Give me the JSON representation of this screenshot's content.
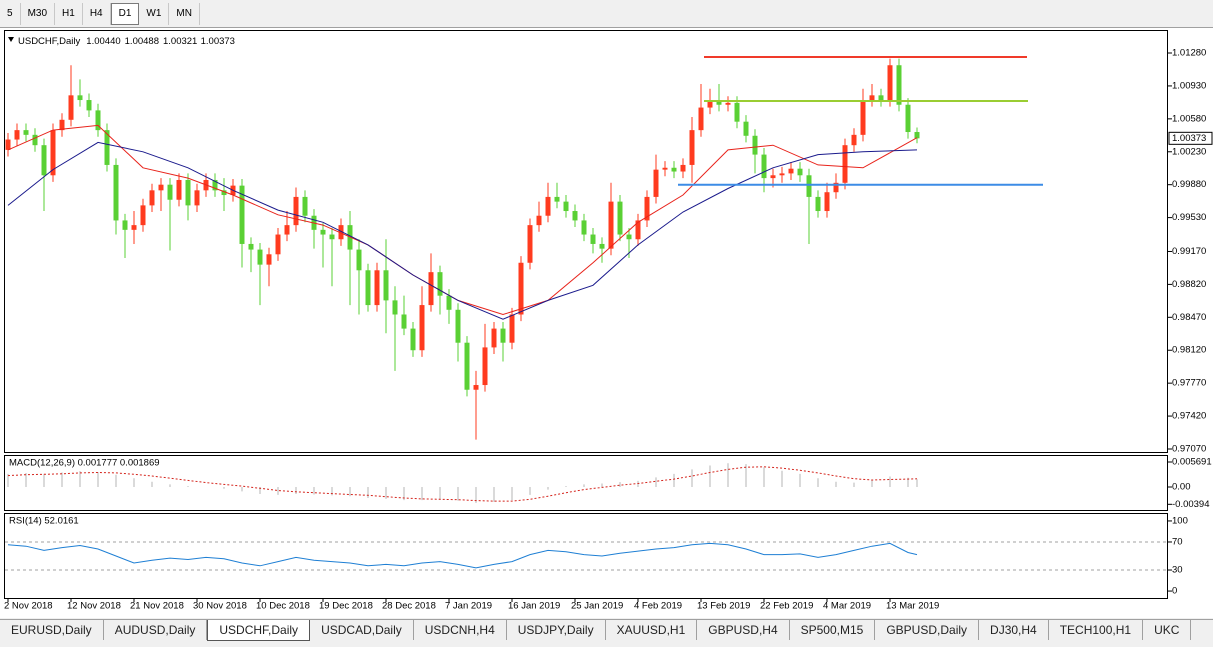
{
  "toolbar": {
    "timeframes": [
      "5",
      "M30",
      "H1",
      "H4",
      "D1",
      "W1",
      "MN"
    ],
    "active": "D1"
  },
  "chart_data": [
    {
      "type": "candlestick",
      "title": "USDCHF,Daily",
      "ohlc_labels": [
        "1.00440",
        "1.00488",
        "1.00321",
        "1.00373"
      ],
      "current_price_label": "1.00373",
      "categories": [
        "2 Nov 2018",
        null,
        null,
        null,
        null,
        null,
        null,
        "12 Nov 2018",
        null,
        null,
        null,
        null,
        null,
        null,
        "21 Nov 2018",
        null,
        null,
        null,
        null,
        null,
        null,
        "30 Nov 2018",
        null,
        null,
        null,
        null,
        null,
        null,
        "10 Dec 2018",
        null,
        null,
        null,
        null,
        null,
        null,
        "19 Dec 2018",
        null,
        null,
        null,
        null,
        null,
        null,
        "28 Dec 2018",
        null,
        null,
        null,
        null,
        null,
        null,
        "7 Jan 2019",
        null,
        null,
        null,
        null,
        null,
        null,
        "16 Jan 2019",
        null,
        null,
        null,
        null,
        null,
        null,
        "25 Jan 2019",
        null,
        null,
        null,
        null,
        null,
        null,
        "4 Feb 2019",
        null,
        null,
        null,
        null,
        null,
        null,
        "13 Feb 2019",
        null,
        null,
        null,
        null,
        null,
        null,
        "22 Feb 2019",
        null,
        null,
        null,
        null,
        null,
        null,
        "4 Mar 2019",
        null,
        null,
        null,
        null,
        null,
        null,
        "13 Mar 2019",
        null,
        null,
        null
      ],
      "open": [
        1.0025,
        1.0036,
        1.0046,
        1.0041,
        1.003,
        0.9998,
        1.0046,
        1.0057,
        1.0083,
        1.0078,
        1.0067,
        1.0046,
        1.0009,
        0.995,
        0.994,
        0.9945,
        0.9966,
        0.9982,
        0.9988,
        0.9972,
        0.9993,
        0.9966,
        0.9982,
        0.9993,
        0.9982,
        0.9977,
        0.9987,
        0.9925,
        0.9919,
        0.9903,
        0.9914,
        0.9935,
        0.9945,
        0.9975,
        0.9955,
        0.994,
        0.9935,
        0.993,
        0.9945,
        0.9919,
        0.9897,
        0.986,
        0.9897,
        0.9865,
        0.985,
        0.9835,
        0.9812,
        0.986,
        0.9895,
        0.987,
        0.9855,
        0.982,
        0.977,
        0.9775,
        0.9815,
        0.9835,
        0.982,
        0.985,
        0.9905,
        0.9945,
        0.9955,
        0.9975,
        0.997,
        0.996,
        0.995,
        0.9935,
        0.9925,
        0.992,
        0.997,
        0.9935,
        0.993,
        0.995,
        0.9975,
        1.0004,
        1.0006,
        1.0002,
        1.0009,
        1.0046,
        1.007,
        1.0078,
        1.0073,
        1.0075,
        1.0055,
        1.004,
        1.002,
        0.9995,
        0.9998,
        1.0,
        1.0005,
        0.9998,
        0.9975,
        0.996,
        0.998,
        0.999,
        1.003,
        1.0041,
        1.0078,
        1.0083,
        1.0078,
        1.0115,
        1.0073,
        1.0044
      ],
      "high": [
        1.0043,
        1.0053,
        1.0053,
        1.0048,
        1.0037,
        1.0053,
        1.0064,
        1.0115,
        1.01,
        1.0085,
        1.0074,
        1.0053,
        1.0016,
        0.9957,
        0.996,
        0.9973,
        0.9989,
        0.9995,
        0.9995,
        1.0,
        1.0,
        0.9989,
        1.0,
        1.0,
        0.9995,
        0.9994,
        0.9994,
        0.9932,
        0.9926,
        0.9921,
        0.9942,
        0.996,
        0.9985,
        0.9982,
        0.9962,
        0.9947,
        0.9942,
        0.9952,
        0.996,
        0.993,
        0.9904,
        0.9905,
        0.993,
        0.988,
        0.987,
        0.9842,
        0.988,
        0.9915,
        0.9902,
        0.9877,
        0.9862,
        0.9827,
        0.979,
        0.984,
        0.9842,
        0.9842,
        0.9857,
        0.9912,
        0.9952,
        0.997,
        0.999,
        0.999,
        0.9977,
        0.9967,
        0.9957,
        0.9942,
        0.9932,
        0.999,
        0.9977,
        0.9942,
        0.9957,
        0.9982,
        1.002,
        1.0013,
        1.0013,
        1.0016,
        1.006,
        1.0095,
        1.009,
        1.0095,
        1.0082,
        1.0082,
        1.0062,
        1.0047,
        1.0027,
        1.0005,
        1.0007,
        1.0012,
        1.0012,
        1.0005,
        0.9982,
        0.999,
        1.0,
        1.0037,
        1.0048,
        1.009,
        1.0095,
        1.009,
        1.0122,
        1.0122,
        1.008,
        1.00488
      ],
      "low": [
        1.0018,
        1.0029,
        1.0034,
        1.0023,
        0.996,
        0.9991,
        1.0039,
        1.005,
        1.0071,
        1.006,
        1.0039,
        1.0002,
        0.9935,
        0.991,
        0.9925,
        0.9938,
        0.9959,
        0.996,
        0.9918,
        0.9965,
        0.995,
        0.9959,
        0.9975,
        0.9975,
        0.996,
        0.997,
        0.99,
        0.9895,
        0.986,
        0.988,
        0.9907,
        0.9928,
        0.9938,
        0.9948,
        0.992,
        0.99,
        0.988,
        0.9923,
        0.986,
        0.985,
        0.9853,
        0.9853,
        0.983,
        0.979,
        0.9828,
        0.9805,
        0.9805,
        0.9853,
        0.985,
        0.984,
        0.98,
        0.9763,
        0.9717,
        0.9768,
        0.9808,
        0.98,
        0.9813,
        0.9843,
        0.9898,
        0.9938,
        0.9948,
        0.9963,
        0.9953,
        0.9943,
        0.9928,
        0.9915,
        0.9905,
        0.9913,
        0.9928,
        0.991,
        0.9923,
        0.9943,
        0.9968,
        0.9997,
        0.9995,
        0.9995,
        0.999,
        1.0039,
        1.0063,
        1.0066,
        1.0066,
        1.0048,
        1.0033,
        1.0,
        0.998,
        0.9985,
        0.999,
        0.9993,
        0.9991,
        0.9925,
        0.9953,
        0.9953,
        0.9973,
        0.9983,
        1.0023,
        1.0034,
        1.0071,
        1.0071,
        1.0071,
        1.0066,
        1.0037,
        1.00321
      ],
      "close": [
        1.0036,
        1.0046,
        1.0041,
        1.003,
        0.9998,
        1.0046,
        1.0057,
        1.0083,
        1.0078,
        1.0067,
        1.0046,
        1.0009,
        0.995,
        0.994,
        0.9945,
        0.9966,
        0.9982,
        0.9988,
        0.9972,
        0.9993,
        0.9966,
        0.9982,
        0.9993,
        0.9982,
        0.9977,
        0.9987,
        0.9925,
        0.9919,
        0.9903,
        0.9914,
        0.9935,
        0.9945,
        0.9975,
        0.9955,
        0.994,
        0.9935,
        0.993,
        0.9945,
        0.9919,
        0.9897,
        0.986,
        0.9897,
        0.9865,
        0.985,
        0.9835,
        0.9812,
        0.986,
        0.9895,
        0.987,
        0.9855,
        0.982,
        0.977,
        0.9775,
        0.9815,
        0.9835,
        0.982,
        0.985,
        0.9905,
        0.9945,
        0.9955,
        0.9975,
        0.997,
        0.996,
        0.995,
        0.9935,
        0.9925,
        0.992,
        0.997,
        0.9935,
        0.993,
        0.995,
        0.9975,
        1.0004,
        1.0006,
        1.0002,
        1.0009,
        1.0046,
        1.007,
        1.0078,
        1.0073,
        1.0075,
        1.0055,
        1.004,
        1.002,
        0.9995,
        0.9998,
        1.0,
        1.0005,
        0.9998,
        0.9975,
        0.996,
        0.998,
        0.999,
        1.003,
        1.0041,
        1.0078,
        1.0083,
        1.0078,
        1.0115,
        1.0073,
        1.0044,
        1.00373
      ],
      "up_color": "#ff3b1f",
      "down_color": "#5ad034",
      "overlays": [
        {
          "x": [
            0,
            5,
            10,
            15,
            20,
            25,
            30,
            35,
            40,
            45,
            50,
            55,
            60,
            65,
            70,
            75,
            80,
            85,
            90,
            95,
            101
          ],
          "values": [
            1.0025,
            1.0046,
            1.0051,
            1.0006,
            0.9995,
            0.9977,
            0.9956,
            0.9945,
            0.9924,
            0.9892,
            0.9865,
            0.985,
            0.9865,
            0.9905,
            0.9948,
            0.9977,
            1.0025,
            1.003,
            1.0009,
            1.0006,
            1.0038
          ],
          "color": "#e8231b"
        },
        {
          "x": [
            0,
            5,
            10,
            15,
            20,
            25,
            30,
            35,
            40,
            45,
            50,
            55,
            60,
            65,
            70,
            75,
            80,
            85,
            90,
            95,
            101
          ],
          "values": [
            0.9966,
            1.0004,
            1.0033,
            1.0023,
            1.0006,
            0.9982,
            0.9961,
            0.9948,
            0.9924,
            0.9892,
            0.9865,
            0.9845,
            0.9865,
            0.9881,
            0.9924,
            0.9959,
            0.9984,
            1.0006,
            1.002,
            1.0023,
            1.0025
          ],
          "color": "#1a1a8c"
        }
      ],
      "levels": [
        {
          "value": 1.01238,
          "color": "#f03a2a"
        },
        {
          "value": 1.0077,
          "color": "#9acd32"
        },
        {
          "value": 0.9988,
          "color": "#3c8ce6"
        }
      ],
      "ylim": [
        0.97038,
        1.01514
      ],
      "yticks": [
        {
          "value": 1.0128,
          "label": "1.01280"
        },
        {
          "value": 1.0093,
          "label": "1.00930"
        },
        {
          "value": 1.0058,
          "label": "1.00580"
        },
        {
          "value": 1.0023,
          "label": "1.00230"
        },
        {
          "value": 0.9988,
          "label": "0.99880"
        },
        {
          "value": 0.9953,
          "label": "0.99530"
        },
        {
          "value": 0.9917,
          "label": "0.99170"
        },
        {
          "value": 0.9882,
          "label": "0.98820"
        },
        {
          "value": 0.9847,
          "label": "0.98470"
        },
        {
          "value": 0.9812,
          "label": "0.98120"
        },
        {
          "value": 0.9777,
          "label": "0.97770"
        },
        {
          "value": 0.9742,
          "label": "0.97420"
        },
        {
          "value": 0.9707,
          "label": "0.97070"
        }
      ]
    },
    {
      "type": "macd",
      "title": "MACD(12,26,9) 0.001777 0.001869",
      "x": [
        0,
        2,
        4,
        6,
        8,
        10,
        12,
        14,
        16,
        18,
        20,
        22,
        24,
        26,
        28,
        30,
        32,
        34,
        36,
        38,
        40,
        42,
        44,
        46,
        48,
        50,
        52,
        54,
        56,
        58,
        60,
        62,
        64,
        66,
        68,
        70,
        72,
        74,
        76,
        78,
        80,
        82,
        84,
        86,
        88,
        90,
        92,
        94,
        96,
        98,
        100,
        101
      ],
      "histogram": {
        "values": [
          0.003,
          0.0032,
          0.003,
          0.0033,
          0.0036,
          0.0034,
          0.0028,
          0.002,
          0.0012,
          0.0006,
          0.0002,
          0.0,
          -0.0004,
          -0.001,
          -0.0016,
          -0.0018,
          -0.0016,
          -0.0017,
          -0.0019,
          -0.0021,
          -0.0025,
          -0.0027,
          -0.003,
          -0.003,
          -0.0029,
          -0.0031,
          -0.0036,
          -0.0034,
          -0.003,
          -0.0018,
          -0.0006,
          0.0002,
          0.0006,
          0.0008,
          0.0011,
          0.0014,
          0.0022,
          0.003,
          0.004,
          0.0049,
          0.0054,
          0.0052,
          0.0045,
          0.0037,
          0.003,
          0.002,
          0.0012,
          0.001,
          0.0016,
          0.0024,
          0.0021,
          0.001777
        ],
        "color": "#b4b4b4"
      },
      "signal": {
        "values": [
          0.0026,
          0.0028,
          0.0029,
          0.003,
          0.0032,
          0.0033,
          0.0032,
          0.0029,
          0.0025,
          0.002,
          0.0015,
          0.001,
          0.0006,
          0.0002,
          -0.0003,
          -0.0008,
          -0.0011,
          -0.0013,
          -0.0015,
          -0.0017,
          -0.0019,
          -0.0022,
          -0.0025,
          -0.0027,
          -0.0028,
          -0.0029,
          -0.0031,
          -0.0032,
          -0.0032,
          -0.0028,
          -0.0021,
          -0.0013,
          -0.0006,
          -0.0001,
          0.0004,
          0.0008,
          0.0013,
          0.0018,
          0.0025,
          0.0033,
          0.004,
          0.0045,
          0.0046,
          0.0043,
          0.0038,
          0.0032,
          0.0025,
          0.0019,
          0.0016,
          0.0017,
          0.0018,
          0.001869
        ],
        "color": "#d4231b"
      },
      "ylim": [
        -0.005236,
        0.007057
      ],
      "yticks": [
        0.005691,
        {
          "value": 0,
          "label": "0.00"
        },
        -0.00394
      ]
    },
    {
      "type": "line",
      "title": "RSI(14) 52.0161",
      "x": [
        0,
        2,
        4,
        6,
        8,
        10,
        12,
        14,
        16,
        18,
        20,
        22,
        24,
        26,
        28,
        30,
        32,
        34,
        36,
        38,
        40,
        42,
        44,
        46,
        48,
        50,
        52,
        54,
        56,
        58,
        60,
        62,
        64,
        66,
        68,
        70,
        72,
        74,
        76,
        78,
        80,
        82,
        84,
        86,
        88,
        90,
        92,
        94,
        96,
        98,
        100,
        101
      ],
      "values": [
        66,
        64,
        58,
        62,
        65,
        60,
        50,
        40,
        44,
        47,
        45,
        48,
        46,
        40,
        36,
        42,
        48,
        44,
        42,
        40,
        36,
        38,
        36,
        40,
        42,
        38,
        33,
        38,
        42,
        52,
        58,
        56,
        52,
        50,
        54,
        57,
        60,
        62,
        66,
        68,
        66,
        60,
        52,
        52,
        53,
        48,
        52,
        58,
        64,
        68,
        55,
        52.0161
      ],
      "color": "#1e7fd4",
      "levels": [
        70,
        30
      ],
      "ylim": [
        -9.9,
        109.9
      ],
      "yticks": [
        100,
        70,
        30,
        0
      ]
    }
  ],
  "tabs": {
    "items": [
      "EURUSD,Daily",
      "AUDUSD,Daily",
      "USDCHF,Daily",
      "USDCAD,Daily",
      "USDCNH,H4",
      "USDJPY,Daily",
      "XAUUSD,H1",
      "GBPUSD,H4",
      "SP500,M15",
      "GBPUSD,Daily",
      "DJ30,H4",
      "TECH100,H1",
      "UKC"
    ],
    "active": "USDCHF,Daily"
  }
}
